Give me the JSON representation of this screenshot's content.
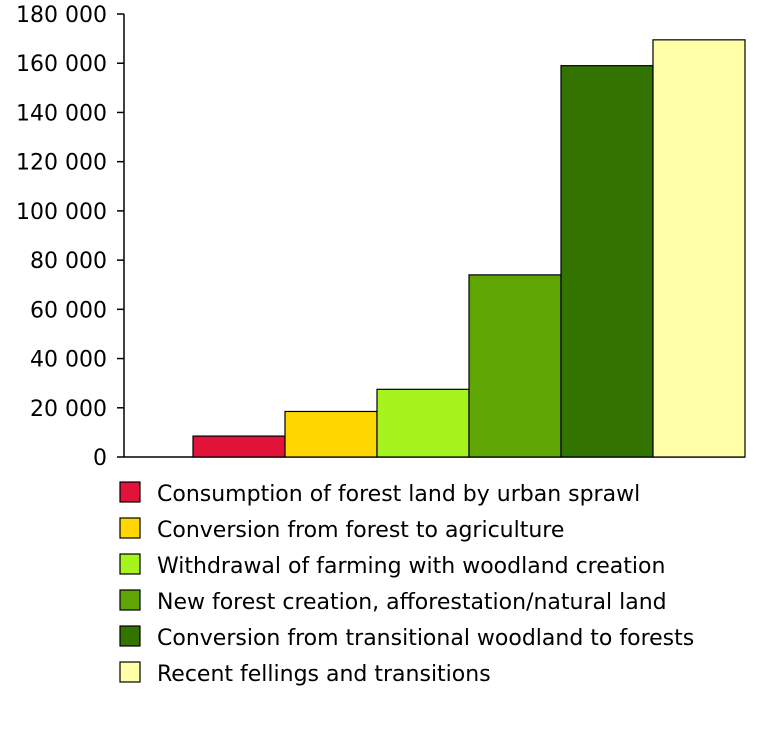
{
  "chart_data": {
    "type": "bar",
    "title": "",
    "xlabel": "",
    "ylabel": "",
    "ylim": [
      0,
      180000
    ],
    "y_ticks": [
      0,
      20000,
      40000,
      60000,
      80000,
      100000,
      120000,
      140000,
      160000,
      180000
    ],
    "y_tick_labels": [
      "0",
      "20 000",
      "40 000",
      "60 000",
      "80 000",
      "100 000",
      "120 000",
      "140 000",
      "160 000",
      "180 000"
    ],
    "grid": false,
    "legend_position": "bottom",
    "categories": [
      "Consumption of forest land by urban sprawl",
      "Conversion from forest to agriculture",
      "Withdrawal of farming with woodland creation",
      "New forest creation, afforestation/natural land",
      "Conversion from transitional woodland to forests",
      "Recent fellings and transitions"
    ],
    "values": [
      8500,
      18500,
      27500,
      74000,
      159000,
      169500
    ],
    "colors": [
      "#e2133b",
      "#ffd700",
      "#a6f31e",
      "#5fa504",
      "#337400",
      "#ffffa8"
    ]
  }
}
